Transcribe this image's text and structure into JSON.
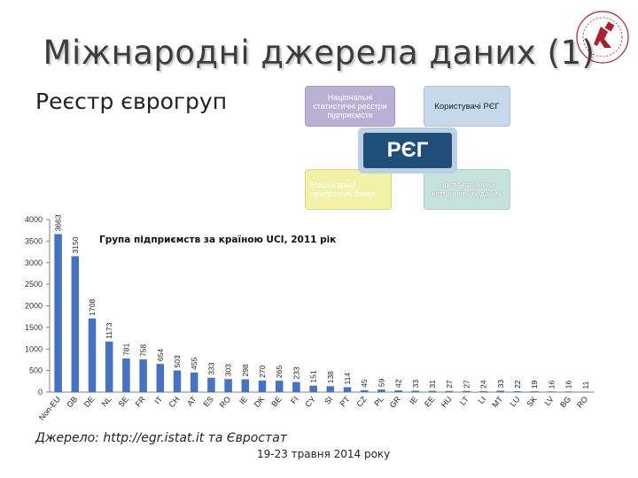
{
  "slide": {
    "title": "Міжнародні джерела даних (1)",
    "subtitle": "Реєстр єврогруп",
    "source": "Джерело: http://egr.istat.it та Євростат",
    "date": "19-23 травня 2014 року"
  },
  "diagram": {
    "national_registers": "Національні статистичні реєстри підприємств",
    "users": "Користувачі РЄГ",
    "center": "РЄГ",
    "central_banks": "Національні центральні банки",
    "commercial_providers": "Постачальники комерційних даних"
  },
  "logo": {
    "name": "university-logo",
    "color": "#b01e2d"
  },
  "colors": {
    "bar": "#4472c4",
    "axis": "#808080",
    "center_box": "#1f4e79"
  },
  "chart_data": {
    "type": "bar",
    "title": "Група підприємств за країною UCI, 2011 рік",
    "categories": [
      "Non-EU",
      "GB",
      "DE",
      "NL",
      "SE",
      "FR",
      "IT",
      "CH",
      "AT",
      "ES",
      "RO",
      "IE",
      "DK",
      "BE",
      "FI",
      "CY",
      "SI",
      "PT",
      "CZ",
      "PL",
      "GR",
      "IE",
      "EE",
      "HU",
      "LT",
      "LI",
      "MT",
      "LU",
      "SK",
      "LV",
      "BG",
      "RO"
    ],
    "values": [
      3663,
      3150,
      1708,
      1173,
      781,
      758,
      654,
      503,
      455,
      333,
      303,
      298,
      270,
      265,
      233,
      151,
      138,
      114,
      45,
      59,
      42,
      33,
      31,
      27,
      27,
      24,
      33,
      22,
      19,
      16,
      16,
      11
    ],
    "value_labels": [
      "3663",
      "3150",
      "1708",
      "1173",
      "781",
      "758",
      "654",
      "503",
      "455",
      "333",
      "303",
      "298",
      "270",
      "265",
      "233",
      "151",
      "138",
      "114",
      "45",
      "59",
      "42",
      "33",
      "31",
      "27",
      "27",
      "24",
      "33",
      "22",
      "19",
      "16",
      "16",
      "11"
    ],
    "ylim": [
      0,
      4000
    ],
    "yticks": [
      "0",
      "500",
      "1000",
      "1500",
      "2000",
      "2500",
      "3000",
      "3500",
      "4000"
    ],
    "grid": false
  }
}
